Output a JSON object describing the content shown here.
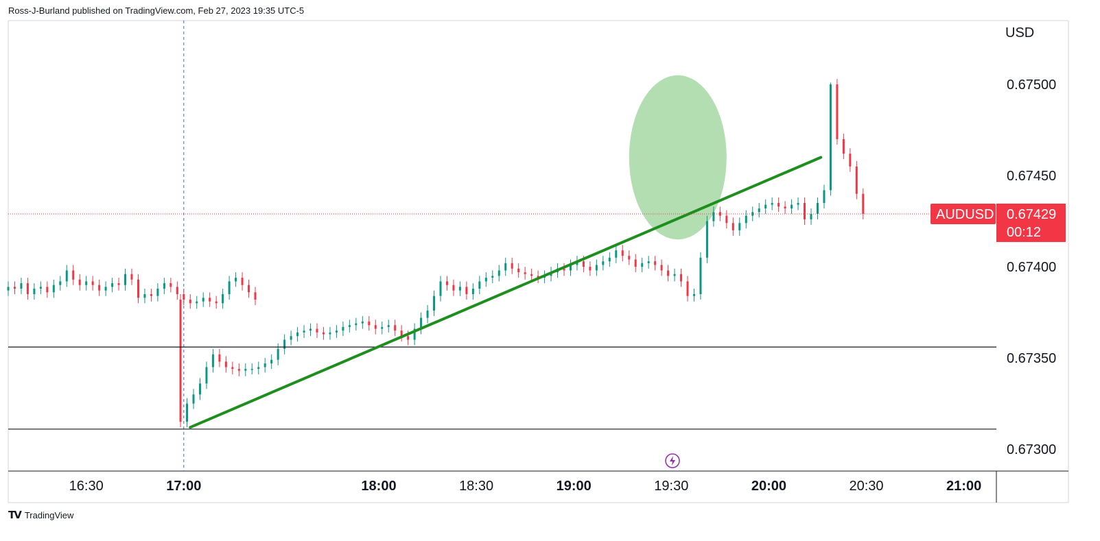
{
  "publisher_line": "Ross-J-Burland published on TradingView.com, Feb 27, 2023 19:35 UTC-5",
  "footer": {
    "brand": "TradingView",
    "logo": "TV"
  },
  "colors": {
    "up": "#089981",
    "down": "#f23645",
    "trendline": "#1e8f1e",
    "highlight": "#88cc88",
    "price_tag": "#f23645",
    "grid_border": "#000000"
  },
  "chart_data": {
    "type": "candlestick",
    "symbol": "AUDUSD",
    "currency": "USD",
    "last_price": "0.67429",
    "countdown": "00:12",
    "y_ticks": [
      "0.67500",
      "0.67450",
      "0.67400",
      "0.67350",
      "0.67300"
    ],
    "y_tick_values": [
      0.675,
      0.6745,
      0.674,
      0.6735,
      0.673
    ],
    "ylim": [
      0.67288,
      0.67535
    ],
    "x_ticks": [
      {
        "label": "16:30",
        "time": "16:30",
        "bold": false
      },
      {
        "label": "17:00",
        "time": "17:00",
        "bold": true
      },
      {
        "label": "18:00",
        "time": "18:00",
        "bold": true
      },
      {
        "label": "18:30",
        "time": "18:30",
        "bold": false
      },
      {
        "label": "19:00",
        "time": "19:00",
        "bold": true
      },
      {
        "label": "19:30",
        "time": "19:30",
        "bold": false
      },
      {
        "label": "20:00",
        "time": "20:00",
        "bold": true
      },
      {
        "label": "20:30",
        "time": "20:30",
        "bold": false
      },
      {
        "label": "21:00",
        "time": "21:00",
        "bold": true
      }
    ],
    "xlim": [
      "16:06",
      "21:10"
    ],
    "session_break": "17:00",
    "horizontal_lines": [
      0.67356,
      0.67311
    ],
    "trendline": {
      "from": {
        "time": "17:02",
        "price": 0.67312
      },
      "to": {
        "time": "20:16",
        "price": 0.6746
      }
    },
    "highlight_zone": {
      "time_center": "19:32",
      "price_center": 0.6746,
      "time_radius_min": 15,
      "price_radius": 0.00045
    },
    "closes": [
      0.67389,
      0.67388,
      0.67391,
      0.67385,
      0.67388,
      0.67389,
      0.67386,
      0.6739,
      0.67392,
      0.67398,
      0.67393,
      0.6739,
      0.67392,
      0.6739,
      0.67387,
      0.67389,
      0.67391,
      0.6739,
      0.67396,
      0.67393,
      0.67383,
      0.67385,
      0.67384,
      0.67388,
      0.67391,
      0.67389,
      0.67385,
      0.67382,
      0.6738,
      0.67381,
      0.67383,
      0.67381,
      0.6738,
      0.67385,
      0.67392,
      0.67394,
      0.6739,
      0.67386,
      0.67382,
      0.67315,
      0.67325,
      0.6733,
      0.67336,
      0.67345,
      0.67352,
      0.67348,
      0.67345,
      0.67344,
      0.67343,
      0.67344,
      0.67344,
      0.67345,
      0.67347,
      0.67349,
      0.67355,
      0.6736,
      0.67362,
      0.67364,
      0.67365,
      0.67366,
      0.67364,
      0.67363,
      0.67364,
      0.67365,
      0.67367,
      0.67368,
      0.67369,
      0.6737,
      0.67368,
      0.67366,
      0.67367,
      0.67368,
      0.67365,
      0.67362,
      0.6736,
      0.67366,
      0.67372,
      0.67376,
      0.67384,
      0.67392,
      0.6739,
      0.67387,
      0.67389,
      0.67385,
      0.67388,
      0.67392,
      0.67394,
      0.67395,
      0.67398,
      0.67402,
      0.67399,
      0.67397,
      0.67396,
      0.67395,
      0.67394,
      0.67395,
      0.67397,
      0.67399,
      0.67398,
      0.67401,
      0.67403,
      0.674,
      0.67398,
      0.67401,
      0.67403,
      0.67405,
      0.67409,
      0.67406,
      0.67404,
      0.674,
      0.67402,
      0.67403,
      0.67401,
      0.67398,
      0.67395,
      0.67396,
      0.67392,
      0.67384,
      0.67385,
      0.67405,
      0.67425,
      0.6743,
      0.67428,
      0.67424,
      0.6742,
      0.67424,
      0.67428,
      0.6743,
      0.67432,
      0.67434,
      0.67435,
      0.67433,
      0.67432,
      0.67434,
      0.67435,
      0.67426,
      0.67429,
      0.67435,
      0.67442,
      0.675,
      0.6747,
      0.67462,
      0.67455,
      0.6744,
      0.67429
    ]
  }
}
